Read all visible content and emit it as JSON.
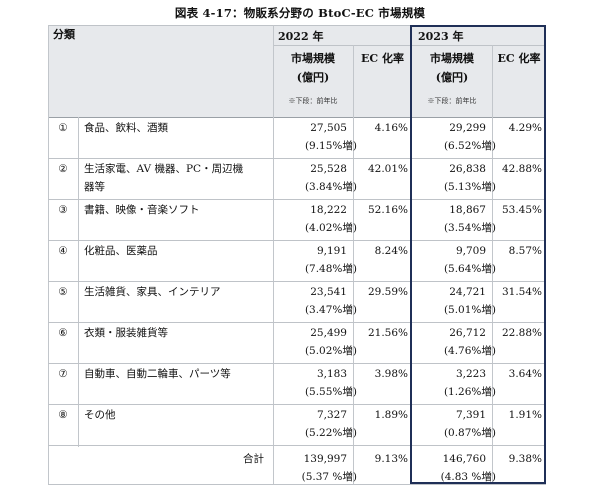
{
  "title": "図表 4-17：物販系分野の BtoC-EC 市場規模",
  "header": {
    "category": "分類",
    "year_2022": "2022 年",
    "year_2023": "2023 年",
    "market_size": "市場規模",
    "unit": "(億円)",
    "note": "※下段：前年比",
    "ec_rate": "EC 化率"
  },
  "rows": [
    {
      "num": "①",
      "name": [
        "食品、飲料、酒類"
      ],
      "v2022": "27,505",
      "g2022": "(9.15%増)",
      "r2022": "4.16%",
      "v2023": "29,299",
      "g2023": "(6.52%増)",
      "r2023": "4.29%"
    },
    {
      "num": "②",
      "name": [
        "生活家電、AV 機器、PC・周辺機",
        "器等"
      ],
      "v2022": "25,528",
      "g2022": "(3.84%増)",
      "r2022": "42.01%",
      "v2023": "26,838",
      "g2023": "(5.13%増)",
      "r2023": "42.88%"
    },
    {
      "num": "③",
      "name": [
        "書籍、映像・音楽ソフト"
      ],
      "v2022": "18,222",
      "g2022": "(4.02%増)",
      "r2022": "52.16%",
      "v2023": "18,867",
      "g2023": "(3.54%増)",
      "r2023": "53.45%"
    },
    {
      "num": "④",
      "name": [
        "化粧品、医薬品"
      ],
      "v2022": "9,191",
      "g2022": "(7.48%増)",
      "r2022": "8.24%",
      "v2023": "9,709",
      "g2023": "(5.64%増)",
      "r2023": "8.57%"
    },
    {
      "num": "⑤",
      "name": [
        "生活雑貨、家具、インテリア"
      ],
      "v2022": "23,541",
      "g2022": "(3.47%増)",
      "r2022": "29.59%",
      "v2023": "24,721",
      "g2023": "(5.01%増)",
      "r2023": "31.54%"
    },
    {
      "num": "⑥",
      "name": [
        "衣類・服装雑貨等"
      ],
      "v2022": "25,499",
      "g2022": "(5.02%増)",
      "r2022": "21.56%",
      "v2023": "26,712",
      "g2023": "(4.76%増)",
      "r2023": "22.88%"
    },
    {
      "num": "⑦",
      "name": [
        "自動車、自動二輪車、パーツ等"
      ],
      "v2022": "3,183",
      "g2022": "(5.55%増)",
      "r2022": "3.98%",
      "v2023": "3,223",
      "g2023": "(1.26%増)",
      "r2023": "3.64%"
    },
    {
      "num": "⑧",
      "name": [
        "その他"
      ],
      "v2022": "7,327",
      "g2022": "(5.22%増)",
      "r2022": "1.89%",
      "v2023": "7,391",
      "g2023": "(0.87%増)",
      "r2023": "1.91%"
    }
  ],
  "total": {
    "label": "合計",
    "v2022": "139,997",
    "g2022": "(5.37 %増)",
    "r2022": "9.13%",
    "v2023": "146,760",
    "g2023": "(4.83 %増)",
    "r2023": "9.38%"
  }
}
